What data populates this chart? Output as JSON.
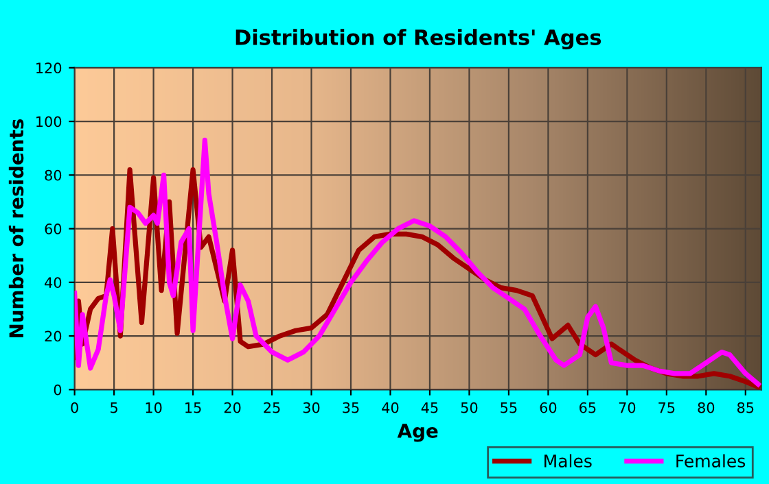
{
  "chart_data": {
    "type": "line",
    "title": "Distribution of Residents' Ages",
    "xlabel": "Age",
    "ylabel": "Number of residents",
    "xlim": [
      0,
      87
    ],
    "xticks": [
      0,
      5,
      10,
      15,
      20,
      25,
      30,
      35,
      40,
      45,
      50,
      55,
      60,
      65,
      70,
      75,
      80,
      85
    ],
    "ylim": [
      0,
      120
    ],
    "yticks": [
      0,
      20,
      40,
      60,
      80,
      100,
      120
    ],
    "grid": true,
    "legend": "bottom right",
    "marker": "none",
    "line_style": "solid",
    "series": [
      {
        "name": "Males",
        "color": "#a00000",
        "x": [
          0,
          0.5,
          1,
          2,
          3,
          4,
          4.8,
          5.8,
          7,
          8.5,
          10,
          11,
          12,
          13,
          15,
          16,
          17,
          19,
          20,
          21,
          22,
          24,
          26,
          28,
          30,
          32,
          34,
          36,
          38,
          40,
          42,
          44,
          46,
          48,
          50,
          52,
          54,
          56,
          58,
          60.5,
          62.5,
          64,
          66,
          68,
          69,
          71,
          73,
          75,
          77,
          79,
          81,
          83,
          85,
          86.6
        ],
        "values": [
          12,
          33,
          17,
          30,
          34,
          35,
          60,
          20,
          82,
          25,
          79,
          37,
          70,
          21,
          82,
          53,
          57,
          33,
          52,
          18,
          16,
          17,
          20,
          22,
          23,
          28,
          40,
          52,
          57,
          58,
          58,
          57,
          54,
          49,
          45,
          41,
          38,
          37,
          35,
          19,
          24,
          17,
          13,
          17,
          15,
          11,
          8,
          6,
          5,
          5,
          6,
          5,
          3,
          1
        ]
      },
      {
        "name": "Females",
        "color": "#ff00ff",
        "x": [
          0,
          0.5,
          1,
          2,
          3,
          4,
          4.5,
          5,
          5.8,
          7,
          8,
          9,
          10,
          10.5,
          11.3,
          12,
          12.5,
          13.5,
          14.5,
          15,
          16.5,
          17,
          18,
          19,
          20,
          21,
          22,
          23,
          25,
          27,
          29,
          31,
          33,
          35,
          37,
          39,
          41,
          43,
          45,
          47,
          49,
          51,
          53,
          55,
          57,
          59,
          61,
          62,
          64,
          65,
          66,
          67,
          68,
          70,
          72,
          74,
          76,
          78,
          80,
          82,
          83,
          85,
          86.6
        ],
        "values": [
          36,
          9,
          28,
          8,
          15,
          35,
          41,
          35,
          22,
          68,
          66,
          62,
          65,
          62,
          80,
          40,
          35,
          55,
          60,
          22,
          93,
          73,
          55,
          35,
          19,
          39,
          33,
          20,
          14,
          11,
          14,
          20,
          30,
          40,
          48,
          55,
          60,
          63,
          61,
          57,
          51,
          44,
          38,
          34,
          30,
          20,
          11,
          9,
          13,
          27,
          31,
          23,
          10,
          9,
          9,
          7,
          6,
          6,
          10,
          14,
          13,
          6,
          2
        ]
      }
    ]
  }
}
